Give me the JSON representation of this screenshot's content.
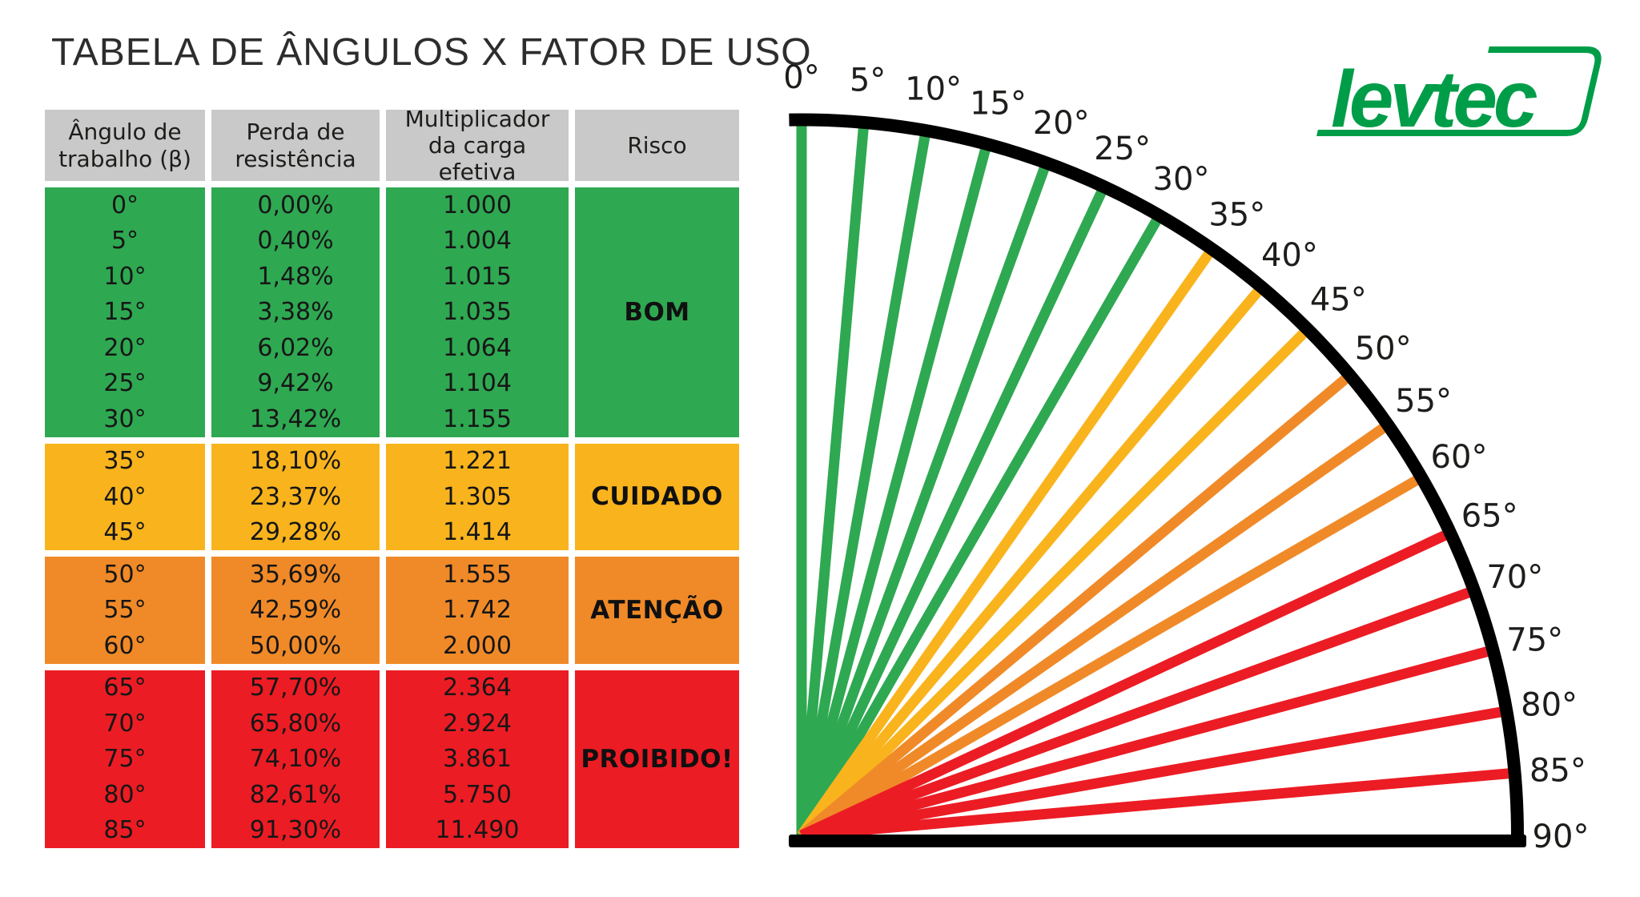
{
  "title": "TABELA DE ÂNGULOS X FATOR DE USO",
  "logo": {
    "text": "levtec"
  },
  "colors": {
    "good": "#2FA852",
    "caution": "#F9B41D",
    "attention": "#F08A28",
    "danger": "#EC1C24",
    "header": "#C9C9C9",
    "ink": "#1D1D1B",
    "line": "#000000",
    "brand": "#009D49"
  },
  "table": {
    "headers": [
      "Ângulo de\ntrabalho (β)",
      "Perda de\nresistência",
      "Multiplicador\nda carga efetiva",
      "Risco"
    ],
    "groups": [
      {
        "risk": "BOM",
        "color": "good",
        "rows": [
          [
            "0°",
            "0,00%",
            "1.000"
          ],
          [
            "5°",
            "0,40%",
            "1.004"
          ],
          [
            "10°",
            "1,48%",
            "1.015"
          ],
          [
            "15°",
            "3,38%",
            "1.035"
          ],
          [
            "20°",
            "6,02%",
            "1.064"
          ],
          [
            "25°",
            "9,42%",
            "1.104"
          ],
          [
            "30°",
            "13,42%",
            "1.155"
          ]
        ]
      },
      {
        "risk": "CUIDADO",
        "color": "caution",
        "rows": [
          [
            "35°",
            "18,10%",
            "1.221"
          ],
          [
            "40°",
            "23,37%",
            "1.305"
          ],
          [
            "45°",
            "29,28%",
            "1.414"
          ]
        ]
      },
      {
        "risk": "ATENÇÃO",
        "color": "attention",
        "rows": [
          [
            "50°",
            "35,69%",
            "1.555"
          ],
          [
            "55°",
            "42,59%",
            "1.742"
          ],
          [
            "60°",
            "50,00%",
            "2.000"
          ]
        ]
      },
      {
        "risk": "PROIBIDO!",
        "color": "danger",
        "rows": [
          [
            "65°",
            "57,70%",
            "2.364"
          ],
          [
            "70°",
            "65,80%",
            "2.924"
          ],
          [
            "75°",
            "74,10%",
            "3.861"
          ],
          [
            "80°",
            "82,61%",
            "5.750"
          ],
          [
            "85°",
            "91,30%",
            "11.490"
          ]
        ]
      }
    ]
  },
  "fan": {
    "labels": [
      "0°",
      "5°",
      "10°",
      "15°",
      "20°",
      "25°",
      "30°",
      "35°",
      "40°",
      "45°",
      "50°",
      "55°",
      "60°",
      "65°",
      "70°",
      "75°",
      "80°",
      "85°",
      "90°"
    ],
    "rays": [
      {
        "angle": 0,
        "color": "good"
      },
      {
        "angle": 5,
        "color": "good"
      },
      {
        "angle": 10,
        "color": "good"
      },
      {
        "angle": 15,
        "color": "good"
      },
      {
        "angle": 20,
        "color": "good"
      },
      {
        "angle": 25,
        "color": "good"
      },
      {
        "angle": 30,
        "color": "good"
      },
      {
        "angle": 35,
        "color": "caution"
      },
      {
        "angle": 40,
        "color": "caution"
      },
      {
        "angle": 45,
        "color": "caution"
      },
      {
        "angle": 50,
        "color": "attention"
      },
      {
        "angle": 55,
        "color": "attention"
      },
      {
        "angle": 60,
        "color": "attention"
      },
      {
        "angle": 65,
        "color": "danger"
      },
      {
        "angle": 70,
        "color": "danger"
      },
      {
        "angle": 75,
        "color": "danger"
      },
      {
        "angle": 80,
        "color": "danger"
      },
      {
        "angle": 85,
        "color": "danger"
      }
    ]
  }
}
